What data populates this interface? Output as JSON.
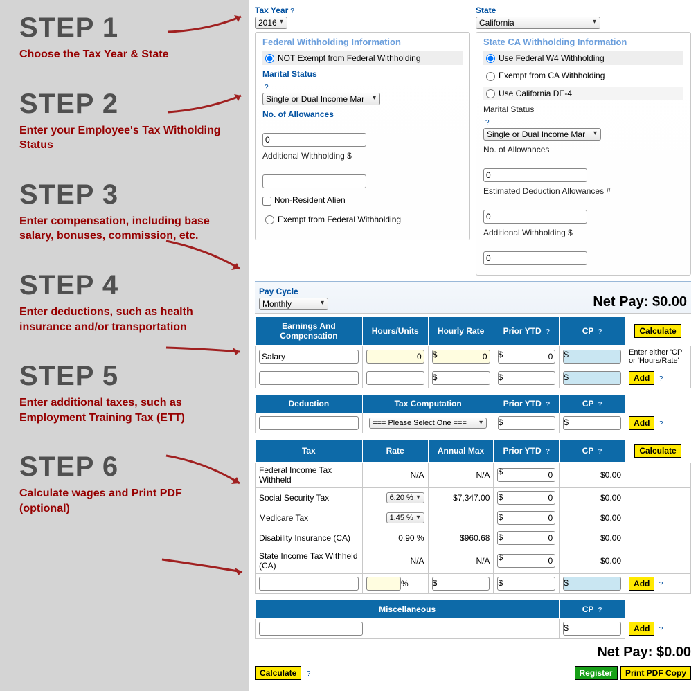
{
  "steps": [
    {
      "h": "STEP 1",
      "t": "Choose the Tax Year & State"
    },
    {
      "h": "STEP 2",
      "t": "Enter your Employee's Tax Witholding Status"
    },
    {
      "h": "STEP 3",
      "t": "Enter compensation, including base salary, bonuses, commission, etc."
    },
    {
      "h": "STEP 4",
      "t": "Enter deductions, such as health insurance and/or transportation"
    },
    {
      "h": "STEP 5",
      "t": "Enter additional taxes, such as Employment Training Tax (ETT)"
    },
    {
      "h": "STEP 6",
      "t": "Calculate wages and Print PDF (optional)"
    }
  ],
  "top": {
    "taxYearLabel": "Tax Year",
    "taxYearValue": "2016",
    "stateLabel": "State",
    "stateValue": "California"
  },
  "federal": {
    "legend": "Federal Withholding Information",
    "notExempt": "NOT Exempt from Federal Withholding",
    "maritalLabel": "Marital Status",
    "maritalValue": "Single or Dual Income Mar",
    "allowLabel": "No. of Allowances",
    "allowValue": "0",
    "addlLabel": "Additional Withholding $",
    "addlValue": "",
    "nra": "Non-Resident Alien",
    "exempt": "Exempt from Federal Withholding"
  },
  "state": {
    "legend": "State CA Withholding Information",
    "useFed": "Use Federal W4 Withholding",
    "exemptCA": "Exempt from CA Withholding",
    "useDE4": "Use California DE-4",
    "maritalLabel": "Marital Status",
    "maritalValue": "Single or Dual Income Mar",
    "allowLabel": "No. of Allowances",
    "allowValue": "0",
    "estDedLabel": "Estimated Deduction Allowances #",
    "estDedValue": "0",
    "addlLabel": "Additional Withholding $",
    "addlValue": "0"
  },
  "pay": {
    "cycleLabel": "Pay Cycle",
    "cycleValue": "Monthly",
    "netLabel": "Net Pay: $0.00"
  },
  "earnHdr": {
    "c1": "Earnings And Compensation",
    "c2": "Hours/Units",
    "c3": "Hourly Rate",
    "c4": "Prior YTD",
    "c5": "CP",
    "c6": "Calculate"
  },
  "earnRows": [
    {
      "name": "Salary",
      "hours": "0",
      "rate": "0",
      "ytd": "0",
      "cp": "",
      "hint": "Enter either 'CP' or 'Hours/Rate'"
    },
    {
      "name": "",
      "hours": "",
      "rate": "",
      "ytd": "",
      "cp": "",
      "hint": "Add"
    }
  ],
  "dedHdr": {
    "c1": "Deduction",
    "c2": "Tax Computation",
    "c3": "Prior YTD",
    "c4": "CP"
  },
  "dedRow": {
    "name": "",
    "sel": "=== Please Select One ===",
    "ytd": "",
    "cp": "",
    "btn": "Add"
  },
  "taxHdr": {
    "c1": "Tax",
    "c2": "Rate",
    "c3": "Annual Max",
    "c4": "Prior YTD",
    "c5": "CP",
    "c6": "Calculate"
  },
  "taxRows": [
    {
      "name": "Federal Income Tax Withheld",
      "rate": "N/A",
      "max": "N/A",
      "ytd": "0",
      "cp": "$0.00"
    },
    {
      "name": "Social Security Tax",
      "rate": "6.20 %",
      "max": "$7,347.00",
      "ytd": "0",
      "cp": "$0.00",
      "rateSel": true
    },
    {
      "name": "Medicare Tax",
      "rate": "1.45 %",
      "max": "",
      "ytd": "0",
      "cp": "$0.00",
      "rateSel": true
    },
    {
      "name": "Disability Insurance (CA)",
      "rate": "0.90 %",
      "max": "$960.68",
      "ytd": "0",
      "cp": "$0.00"
    },
    {
      "name": "State Income Tax Withheld (CA)",
      "rate": "N/A",
      "max": "N/A",
      "ytd": "0",
      "cp": "$0.00"
    }
  ],
  "taxAdd": {
    "rate": "",
    "max": "",
    "ytd": "",
    "cp": "",
    "btn": "Add"
  },
  "miscHdr": {
    "c1": "Miscellaneous",
    "c2": "CP"
  },
  "miscRow": {
    "name": "",
    "cp": "",
    "btn": "Add"
  },
  "footer": {
    "net": "Net Pay: $0.00",
    "calc": "Calculate",
    "reg": "Register",
    "print": "Print PDF Copy"
  }
}
